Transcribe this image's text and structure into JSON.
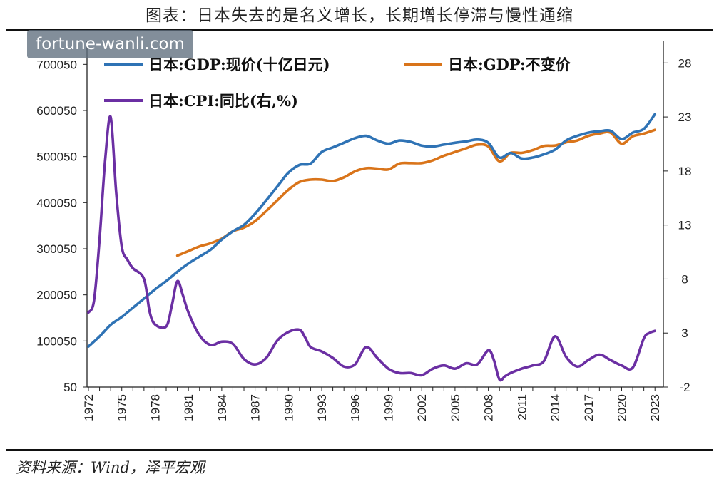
{
  "title": "图表：日本失去的是名义增长，长期增长停滞与慢性通缩",
  "source": "资料来源：Wind，泽平宏观",
  "watermark": "fortune-wanli.com",
  "colors": {
    "nominal": "#2f73b5",
    "real": "#d9741a",
    "cpi": "#6b2fa3"
  },
  "chart_data": {
    "type": "line",
    "x_tick_labels": [
      "1972",
      "1975",
      "1978",
      "1981",
      "1984",
      "1987",
      "1990",
      "1993",
      "1996",
      "1999",
      "2002",
      "2005",
      "2008",
      "2011",
      "2014",
      "2017",
      "2020",
      "2023"
    ],
    "y_left": {
      "ticks": [
        "50",
        "100050",
        "200050",
        "300050",
        "400050",
        "500050",
        "600050",
        "700050"
      ],
      "range": [
        50,
        750050
      ]
    },
    "y_right": {
      "ticks": [
        "-2",
        "3",
        "8",
        "13",
        "18",
        "23",
        "28"
      ],
      "range": [
        -2,
        30
      ]
    },
    "series": [
      {
        "name": "日本:GDP:现价(十亿日元)",
        "axis": "left",
        "color_key": "nominal",
        "x": [
          1972,
          1973,
          1974,
          1975,
          1976,
          1977,
          1978,
          1979,
          1980,
          1981,
          1982,
          1983,
          1984,
          1985,
          1986,
          1987,
          1988,
          1989,
          1990,
          1991,
          1992,
          1993,
          1994,
          1995,
          1996,
          1997,
          1998,
          1999,
          2000,
          2001,
          2002,
          2003,
          2004,
          2005,
          2006,
          2007,
          2008,
          2009,
          2010,
          2011,
          2012,
          2013,
          2014,
          2015,
          2016,
          2017,
          2018,
          2019,
          2020,
          2021,
          2022,
          2023
        ],
        "y": [
          88000,
          110000,
          135000,
          152000,
          172000,
          192000,
          212000,
          230000,
          250000,
          268000,
          283000,
          298000,
          320000,
          338000,
          352000,
          376000,
          405000,
          435000,
          465000,
          482000,
          485000,
          510000,
          520000,
          530000,
          540000,
          545000,
          535000,
          528000,
          535000,
          532000,
          524000,
          522000,
          526000,
          530000,
          533000,
          537000,
          530000,
          498000,
          508000,
          496000,
          498000,
          505000,
          515000,
          535000,
          545000,
          552000,
          555000,
          556000,
          538000,
          552000,
          560000,
          592000
        ]
      },
      {
        "name": "日本:GDP:不变价",
        "axis": "left",
        "color_key": "real",
        "x": [
          1980,
          1981,
          1982,
          1983,
          1984,
          1985,
          1986,
          1987,
          1988,
          1989,
          1990,
          1991,
          1992,
          1993,
          1994,
          1995,
          1996,
          1997,
          1998,
          1999,
          2000,
          2001,
          2002,
          2003,
          2004,
          2005,
          2006,
          2007,
          2008,
          2009,
          2010,
          2011,
          2012,
          2013,
          2014,
          2015,
          2016,
          2017,
          2018,
          2019,
          2020,
          2021,
          2022,
          2023
        ],
        "y": [
          285000,
          295000,
          305000,
          312000,
          322000,
          338000,
          346000,
          360000,
          382000,
          405000,
          428000,
          445000,
          450000,
          450000,
          447000,
          455000,
          468000,
          475000,
          474000,
          472000,
          485000,
          486000,
          486000,
          492000,
          502000,
          510000,
          518000,
          526000,
          522000,
          490000,
          508000,
          508000,
          514000,
          523000,
          524000,
          531000,
          535000,
          545000,
          550000,
          552000,
          528000,
          544000,
          550000,
          558000
        ]
      },
      {
        "name": "日本:CPI:同比(右,%)",
        "axis": "right",
        "color_key": "cpi",
        "x": [
          1972,
          1972.5,
          1973,
          1973.5,
          1974,
          1974.5,
          1975,
          1975.5,
          1976,
          1977,
          1977.5,
          1978,
          1979,
          1979.5,
          1980,
          1980.5,
          1981,
          1982,
          1983,
          1984,
          1985,
          1986,
          1987,
          1988,
          1989,
          1990,
          1991,
          1991.5,
          1992,
          1993,
          1994,
          1995,
          1996,
          1997,
          1998,
          1999,
          2000,
          2001,
          2002,
          2003,
          2004,
          2005,
          2006,
          2007,
          2008,
          2008.5,
          2009,
          2009.5,
          2010,
          2011,
          2012,
          2013,
          2014,
          2015,
          2016,
          2017,
          2018,
          2019,
          2020,
          2021,
          2022,
          2022.5,
          2023
        ],
        "y": [
          4.9,
          6.0,
          11.7,
          19.0,
          23.0,
          16.0,
          11.0,
          9.8,
          9.0,
          8.0,
          5.0,
          3.8,
          3.6,
          5.5,
          7.8,
          6.5,
          4.9,
          2.8,
          1.9,
          2.2,
          2.0,
          0.6,
          0.1,
          0.7,
          2.3,
          3.1,
          3.3,
          2.6,
          1.7,
          1.3,
          0.7,
          -0.1,
          0.1,
          1.7,
          0.7,
          -0.3,
          -0.7,
          -0.7,
          -0.9,
          -0.3,
          0.0,
          -0.3,
          0.2,
          0.1,
          1.4,
          0.5,
          -1.3,
          -1.0,
          -0.7,
          -0.3,
          0.0,
          0.4,
          2.7,
          0.8,
          -0.1,
          0.5,
          1.0,
          0.5,
          0.0,
          -0.2,
          2.5,
          3.0,
          3.2
        ]
      }
    ]
  },
  "legend": {
    "nominal": "日本:GDP:现价(十亿日元)",
    "real": "日本:GDP:不变价",
    "cpi": "日本:CPI:同比(右,%)"
  }
}
